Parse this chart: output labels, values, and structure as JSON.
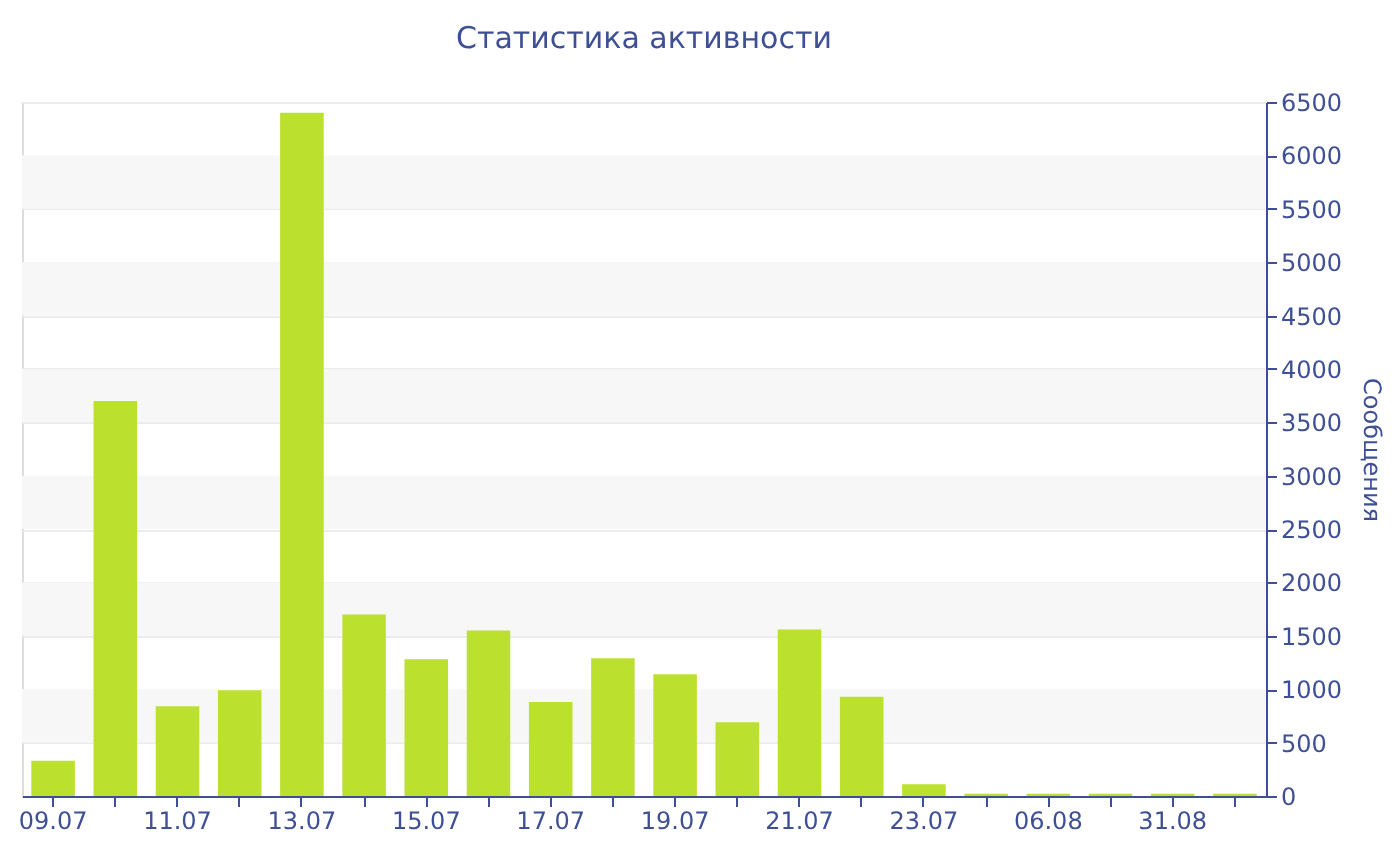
{
  "chart_data": {
    "type": "bar",
    "title": "Статистика активности",
    "ylabel": "Сообщения",
    "categories": [
      "09.07",
      null,
      "11.07",
      null,
      "13.07",
      null,
      "15.07",
      null,
      "17.07",
      null,
      "19.07",
      null,
      "21.07",
      null,
      "23.07",
      null,
      "06.08",
      null,
      "31.08",
      null
    ],
    "values": [
      330,
      3700,
      840,
      990,
      6400,
      1700,
      1280,
      1550,
      880,
      1290,
      1140,
      690,
      1560,
      930,
      110,
      20,
      20,
      20,
      20,
      20
    ],
    "color": "#bce02e",
    "ylim": [
      0,
      6500
    ],
    "yticks": [
      0,
      500,
      1000,
      1500,
      2000,
      2500,
      3000,
      3500,
      4000,
      4500,
      5000,
      5500,
      6000,
      6500
    ],
    "grid": true
  }
}
